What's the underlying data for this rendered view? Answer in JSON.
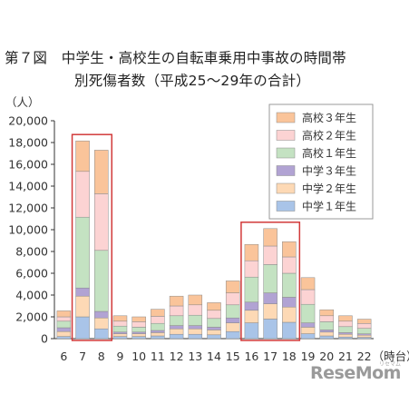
{
  "title_line1": "第７図　中学生・高校生の自転車乗用中事故の時間帯",
  "title_line2": "別死傷者数（平成25～29年の合計）",
  "logo_text": "ReseMom",
  "logo_small": "リセマム",
  "chart_data": {
    "type": "bar",
    "stacked": true,
    "y_unit_label": "（人）",
    "x_unit_label": "（時台）",
    "ylim": [
      0,
      20000
    ],
    "y_ticks": [
      "0",
      "2,000",
      "4,000",
      "6,000",
      "8,000",
      "10,000",
      "12,000",
      "14,000",
      "16,000",
      "18,000",
      "20,000"
    ],
    "y_tick_values": [
      0,
      2000,
      4000,
      6000,
      8000,
      10000,
      12000,
      14000,
      16000,
      18000,
      20000
    ],
    "categories": [
      "6",
      "7",
      "8",
      "9",
      "10",
      "11",
      "12",
      "13",
      "14",
      "15",
      "16",
      "17",
      "18",
      "19",
      "20",
      "21",
      "22"
    ],
    "series": [
      {
        "name": "中学１年生",
        "color": "#a9c4e8",
        "values": [
          200,
          2000,
          900,
          200,
          200,
          250,
          400,
          400,
          350,
          650,
          1450,
          1800,
          1500,
          450,
          250,
          150,
          120
        ]
      },
      {
        "name": "中学２年生",
        "color": "#fdd9b5",
        "values": [
          450,
          1900,
          1000,
          250,
          250,
          300,
          500,
          500,
          450,
          800,
          1150,
          1400,
          1400,
          600,
          350,
          250,
          200
        ]
      },
      {
        "name": "中学３年生",
        "color": "#b1a3d3",
        "values": [
          350,
          750,
          600,
          150,
          150,
          200,
          300,
          300,
          250,
          450,
          750,
          1000,
          900,
          400,
          200,
          150,
          120
        ]
      },
      {
        "name": "高校１年生",
        "color": "#c4e2c2",
        "values": [
          600,
          6500,
          5600,
          550,
          450,
          650,
          900,
          950,
          800,
          1200,
          2300,
          2600,
          2200,
          1700,
          750,
          550,
          500
        ]
      },
      {
        "name": "高校２年生",
        "color": "#fcd3d3",
        "values": [
          400,
          4200,
          5200,
          450,
          500,
          650,
          900,
          950,
          750,
          1100,
          1500,
          1700,
          1500,
          1350,
          550,
          500,
          450
        ]
      },
      {
        "name": "高校３年生",
        "color": "#fac49a",
        "values": [
          550,
          2800,
          4000,
          500,
          450,
          650,
          900,
          900,
          700,
          1100,
          1500,
          1600,
          1400,
          1100,
          550,
          500,
          400
        ]
      }
    ],
    "highlight_groups": [
      [
        "7",
        "8"
      ],
      [
        "16",
        "17",
        "18"
      ]
    ],
    "highlight_color": "#d23a3a",
    "legend_position": "top-right"
  }
}
